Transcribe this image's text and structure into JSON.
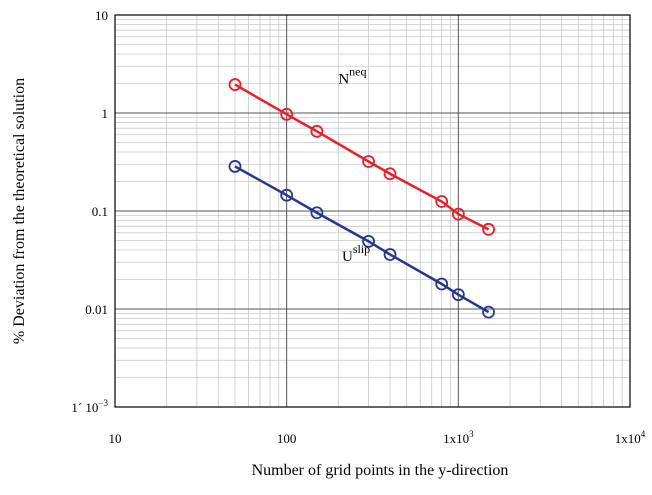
{
  "chart_data": {
    "type": "line",
    "xlabel": "Number of grid points in the y-direction",
    "ylabel": "% Deviation from the theoretical solution",
    "x_scale": "log",
    "y_scale": "log",
    "xlim": [
      10,
      10000
    ],
    "ylim": [
      0.001,
      10
    ],
    "grid": true,
    "x_ticks": [
      {
        "value": 10,
        "main": "10",
        "sup": ""
      },
      {
        "value": 100,
        "main": "100",
        "sup": ""
      },
      {
        "value": 1000,
        "main": "1x10",
        "sup": "3"
      },
      {
        "value": 10000,
        "main": "1x10",
        "sup": "4"
      }
    ],
    "y_ticks": [
      {
        "value": 10,
        "main": "10",
        "sup": ""
      },
      {
        "value": 1,
        "main": "1",
        "sup": ""
      },
      {
        "value": 0.1,
        "main": "0.1",
        "sup": ""
      },
      {
        "value": 0.01,
        "main": "0.01",
        "sup": ""
      },
      {
        "value": 0.001,
        "main": "1´ 10",
        "sup": "−3"
      }
    ],
    "series": [
      {
        "label_main": "N",
        "label_sup": "neq",
        "label_anchor": [
          200,
          2.0
        ],
        "color": "#e8202a",
        "x": [
          50,
          100,
          150,
          300,
          400,
          800,
          1000,
          1500
        ],
        "y": [
          1.95,
          0.97,
          0.65,
          0.32,
          0.24,
          0.125,
          0.093,
          0.065
        ]
      },
      {
        "label_main": "U",
        "label_sup": "slip",
        "label_anchor": [
          210,
          0.031
        ],
        "color": "#2a3590",
        "x": [
          50,
          100,
          150,
          300,
          400,
          800,
          1000,
          1500
        ],
        "y": [
          0.285,
          0.145,
          0.096,
          0.049,
          0.036,
          0.018,
          0.014,
          0.0093
        ]
      }
    ]
  }
}
